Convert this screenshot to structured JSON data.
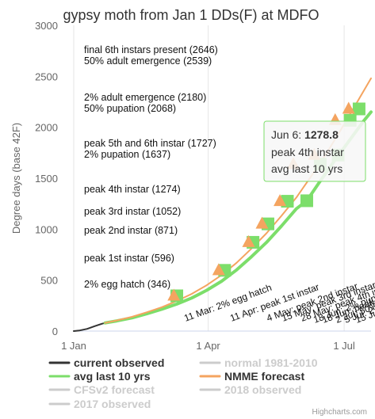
{
  "chart_data": {
    "type": "line",
    "title": "gypsy moth from Jan 1 DDs(F) at MDFO",
    "ylabel": "Degree days (base 42F)",
    "ylim": [
      0,
      3000
    ],
    "yticks": [
      0,
      500,
      1000,
      1500,
      2000,
      2500,
      3000
    ],
    "xlim_day": [
      1,
      200
    ],
    "xticks": [
      {
        "label": "1 Jan",
        "day": 1
      },
      {
        "label": "1 Apr",
        "day": 91
      },
      {
        "label": "1 Jul",
        "day": 182
      }
    ],
    "grid": "x",
    "legend_position": "bottom",
    "series": [
      {
        "name": "current observed",
        "color": "#333333",
        "visible": true,
        "x": [
          1,
          5,
          10,
          15,
          20,
          22
        ],
        "y": [
          0,
          6,
          22,
          48,
          72,
          80
        ]
      },
      {
        "name": "normal 1981-2010",
        "color": "#e6e6e6",
        "visible": false
      },
      {
        "name": "avg last 10 yrs",
        "color": "#7cde6a",
        "visible": true,
        "x": [
          22,
          30,
          40,
          50,
          60,
          70,
          80,
          90,
          100,
          110,
          120,
          130,
          140,
          150,
          157,
          165,
          175,
          185,
          195,
          200
        ],
        "y": [
          80,
          100,
          130,
          170,
          215,
          265,
          325,
          400,
          490,
          600,
          730,
          870,
          1030,
          1200,
          1279,
          1450,
          1660,
          1860,
          2060,
          2150
        ]
      },
      {
        "name": "NMME forecast",
        "color": "#f4a460",
        "visible": true,
        "x": [
          22,
          30,
          40,
          50,
          60,
          70,
          80,
          90,
          100,
          110,
          120,
          130,
          140,
          150,
          160,
          170,
          180,
          190,
          200
        ],
        "y": [
          80,
          105,
          140,
          185,
          235,
          295,
          365,
          450,
          550,
          670,
          810,
          960,
          1130,
          1310,
          1520,
          1740,
          1980,
          2230,
          2480
        ]
      },
      {
        "name": "CFSv2 forecast",
        "color": "#e6e6e6",
        "visible": false
      },
      {
        "name": "2018 observed",
        "color": "#e6e6e6",
        "visible": false
      },
      {
        "name": "2017 observed",
        "color": "#e6e6e6",
        "visible": false
      }
    ],
    "markers_avg": [
      {
        "day": 70,
        "y": 346
      },
      {
        "day": 102,
        "y": 596
      },
      {
        "day": 121,
        "y": 871
      },
      {
        "day": 131,
        "y": 1052
      },
      {
        "day": 144,
        "y": 1274
      },
      {
        "day": 157,
        "y": 1279
      },
      {
        "day": 166,
        "y": 1637
      },
      {
        "day": 178,
        "y": 1727
      },
      {
        "day": 186,
        "y": 2068
      },
      {
        "day": 192,
        "y": 2180
      }
    ],
    "markers_nmme": [
      {
        "day": 68,
        "y": 346
      },
      {
        "day": 98,
        "y": 596
      },
      {
        "day": 118,
        "y": 871
      },
      {
        "day": 127,
        "y": 1052
      },
      {
        "day": 139,
        "y": 1274
      },
      {
        "day": 148,
        "y": 1637
      },
      {
        "day": 162,
        "y": 1727
      },
      {
        "day": 176,
        "y": 2068
      },
      {
        "day": 185,
        "y": 2180
      }
    ],
    "stage_labels": [
      {
        "text": "final 6th instars present (2646)",
        "y": 2646
      },
      {
        "text": "50% adult emergence (2539)",
        "y": 2539
      },
      {
        "text": "2% adult emergence (2180)",
        "y": 2180
      },
      {
        "text": "50% pupation (2068)",
        "y": 2068
      },
      {
        "text": "peak 5th and 6th instar (1727)",
        "y": 1727
      },
      {
        "text": "2% pupation (1637)",
        "y": 1637
      },
      {
        "text": "peak 4th instar (1274)",
        "y": 1274
      },
      {
        "text": "peak 3rd instar (1052)",
        "y": 1052
      },
      {
        "text": "peak 2nd instar (871)",
        "y": 871
      },
      {
        "text": "peak 1st instar (596)",
        "y": 596
      },
      {
        "text": "2% egg hatch (346)",
        "y": 346
      }
    ],
    "date_labels": [
      {
        "text": "11 Mar: 2% egg hatch",
        "day": 70
      },
      {
        "text": "11 Apr: peak 1st instar",
        "day": 101
      },
      {
        "text": "4 May: peak 2nd instar",
        "day": 124
      },
      {
        "text": "15 May: peak 3rd instar",
        "day": 135
      },
      {
        "text": "28 May: peak 4th instar",
        "day": 148
      },
      {
        "text": "18 Jun: 2% pupation",
        "day": 169
      },
      {
        "text": "18 Jun: peak 5th",
        "day": 171
      },
      {
        "text": "2 Jul: 50%",
        "day": 183
      },
      {
        "text": "5 Jul: 2% adult",
        "day": 186
      },
      {
        "text": "15 Jul",
        "day": 196
      }
    ],
    "tooltip": {
      "date": "Jun 6:",
      "value": "1278.8",
      "line2": "peak 4th instar",
      "line3": "avg last 10 yrs",
      "day": 157,
      "y": 1279
    }
  },
  "credits": "Highcharts.com"
}
